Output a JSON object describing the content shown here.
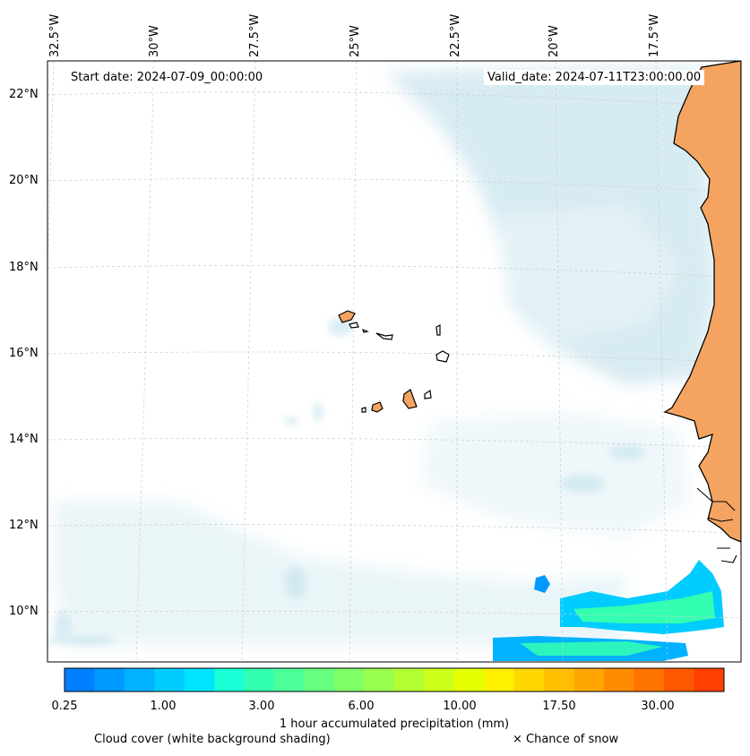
{
  "map": {
    "start_date_label": "Start date: 2024-07-09_00:00:00",
    "valid_date_label": "Valid_date: 2024-07-11T23:00:00.00",
    "lon_ticks": [
      "32.5°W",
      "30°W",
      "27.5°W",
      "25°W",
      "22.5°W",
      "20°W",
      "17.5°W"
    ],
    "lat_ticks": [
      "22°N",
      "20°N",
      "18°N",
      "16°N",
      "14°N",
      "12°N",
      "10°N"
    ],
    "colors": {
      "land": "#f4a460",
      "coast": "#000000",
      "grid": "#cccccc",
      "cloud": "#a9d4e2"
    }
  },
  "colorbar": {
    "title": "1 hour accumulated precipitation (mm)",
    "tick_labels": [
      "0.25",
      "1.00",
      "3.00",
      "6.00",
      "10.00",
      "17.50",
      "30.00"
    ],
    "colors": [
      "#0080ff",
      "#0099ff",
      "#00b2ff",
      "#00ccff",
      "#00e5ff",
      "#1affd6",
      "#33ffb2",
      "#4dff99",
      "#66ff80",
      "#80ff66",
      "#99ff4d",
      "#b3ff33",
      "#ccff1a",
      "#e5ff00",
      "#fff000",
      "#ffd700",
      "#ffbf00",
      "#ffa600",
      "#ff8c00",
      "#ff7300",
      "#ff5900",
      "#ff4000"
    ]
  },
  "footer": {
    "cloud_caption": "Cloud cover (white background shading)",
    "snow_caption": "× Chance of snow"
  }
}
